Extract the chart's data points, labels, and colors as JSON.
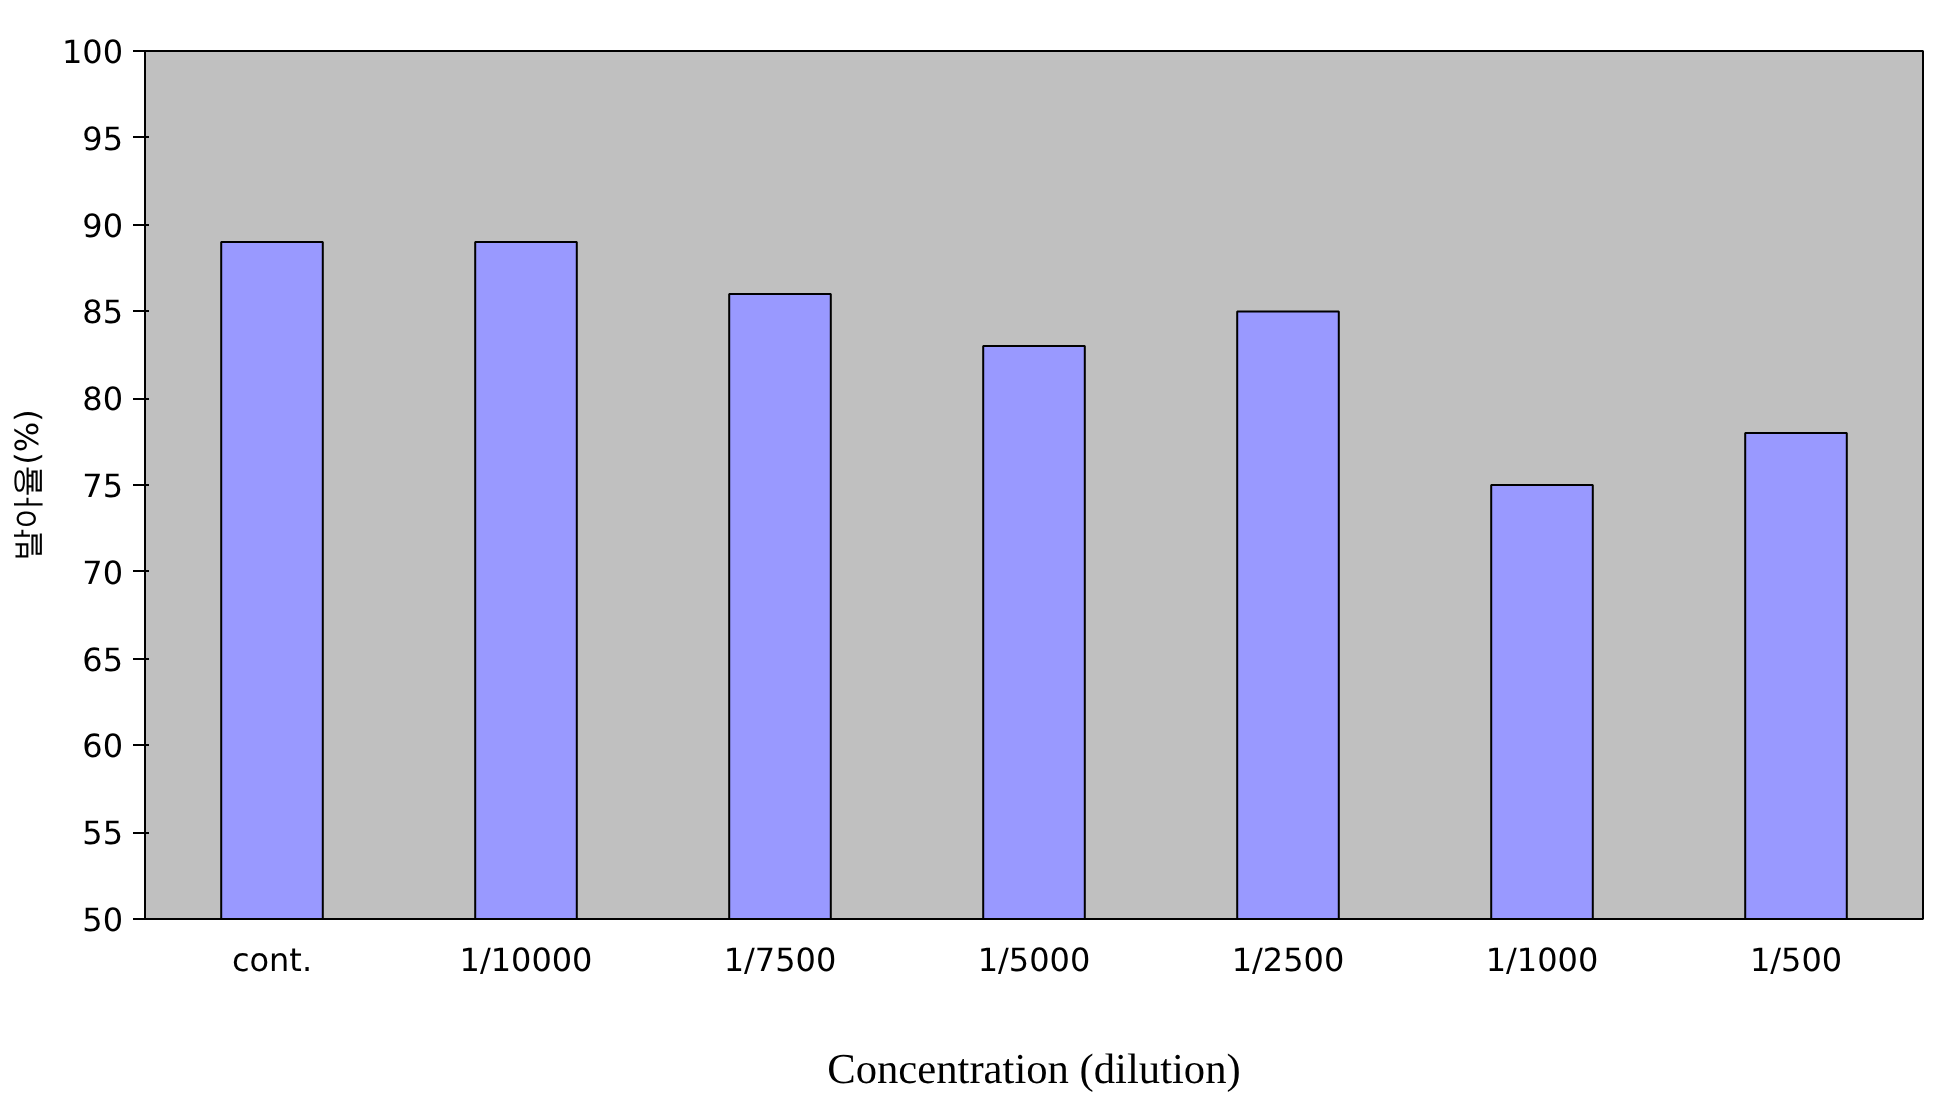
{
  "chart_data": {
    "type": "bar",
    "ylabel": "발아율(%)",
    "xlabel": "Concentration (dilution)",
    "categories": [
      "cont.",
      "1/10000",
      "1/7500",
      "1/5000",
      "1/2500",
      "1/1000",
      "1/500"
    ],
    "values": [
      89,
      89,
      86,
      83,
      85,
      75,
      78
    ],
    "color": "#9999ff",
    "ylim": [
      50,
      100
    ],
    "yticks": [
      50,
      55,
      60,
      65,
      70,
      75,
      80,
      85,
      90,
      95,
      100
    ],
    "grid": false
  }
}
